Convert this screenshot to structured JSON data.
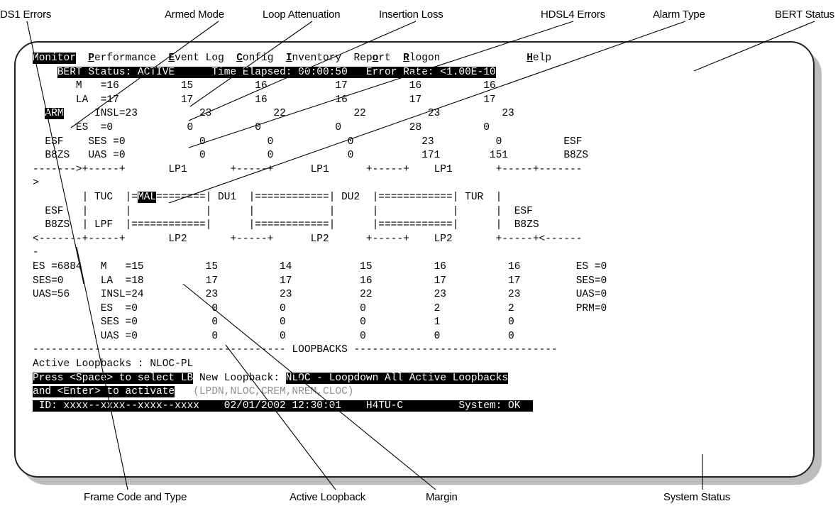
{
  "callouts": {
    "ds1_errors": "DS1 Errors",
    "armed_mode": "Armed Mode",
    "loop_attenuation": "Loop Attenuation",
    "insertion_loss": "Insertion Loss",
    "hdsl4_errors": "HDSL4 Errors",
    "alarm_type": "Alarm Type",
    "bert_status": "BERT Status",
    "frame_code_and_type": "Frame Code and Type",
    "active_loopback": "Active Loopback",
    "margin": "Margin",
    "system_status": "System Status"
  },
  "menu": {
    "monitor": {
      "hot": "M",
      "rest": "onitor"
    },
    "performance": {
      "hot": "P",
      "rest": "erformance"
    },
    "event_log": {
      "hot": "E",
      "rest": "vent Log"
    },
    "config": {
      "hot": "C",
      "rest": "onfig"
    },
    "inventory": {
      "hot": "I",
      "rest": "nventory"
    },
    "report_pre": "Rep",
    "report": {
      "hot": "o",
      "rest": "rt"
    },
    "rlogon": {
      "hot": "R",
      "rest": "logon"
    },
    "help": {
      "hot": "H",
      "rest": "elp"
    }
  },
  "bert_bar": "BERT Status: ACTIVE      Time Elapsed: 00:00:50   Error Rate: <1.00E-10",
  "upper": {
    "m_row": "       M   =16          15          16           17          16          16",
    "la_row": "       LA  =17          17          16           16          17          17",
    "arm_label": "ARM",
    "insl_row": "     INSL=23          23          22           22          23          23",
    "es_row": "       ES  =0            0          0            0           28          0",
    "ses_row": "  ESF    SES =0            0          0            0           23          0          ESF",
    "uas_row": "  B8ZS   UAS =0            0          0            0           171        151         B8ZS",
    "lp1_row": "------->+-----+       LP1       +-----+      LP1      +-----+    LP1       +-----+-------",
    "wrap_row": ">"
  },
  "diagram": {
    "row1_pre": "        | TUC  |=",
    "alarm": "MAL",
    "row1_post": "========| DU1  |============| DU2  |============| TUR  |",
    "row2": "  ESF   |      |            |      |            |      |            |      |  ESF",
    "row3": "  B8ZS  | LPF  |============|      |============|      |============|      |  B8ZS",
    "lp2_row": "<-------+-----+       LP2       +-----+      LP2      +-----+    LP2       +-----+<------",
    "wrap_row": "-"
  },
  "lower": {
    "m_row": "ES =6884   M   =15          15          14           15          16          16         ES =0",
    "la_row": "SES=0      LA  =18          17          17           16          17          17         SES=0",
    "insl_row": "UAS=56     INSL=24          23          23           22          23          23         UAS=0",
    "es_row": "           ES  =0            0          0            0           2           2          PRM=0",
    "ses_row": "           SES =0            0          0            0           1           0",
    "uas_row": "           UAS =0            0          0            0           0           0"
  },
  "loopbacks": {
    "separator": "----------------------------------------- LOOPBACKS ---------------------------------",
    "active_label": "Active Loopbacks : NLOC-PL",
    "press_text": "Press <Space> to select LB",
    "new_label": " New Loopback: ",
    "new_value": "NLOC - Loopdown All Active Loopbacks",
    "enter_text": "and <Enter> to activate",
    "options": "(LPDN,NLOC,CREM,NREM,CLOC)"
  },
  "status_bar": " ID: xxxx--xxxx--xxxx--xxxx    02/01/2002 12:30:01    H4TU-C         System: OK  "
}
